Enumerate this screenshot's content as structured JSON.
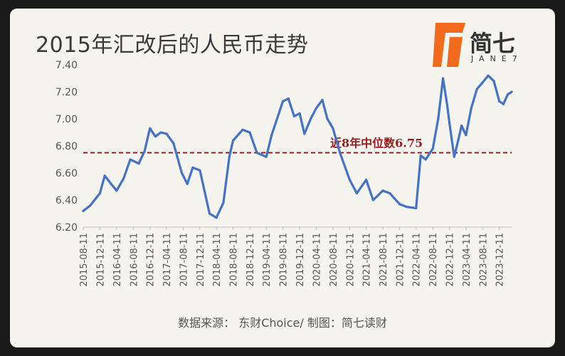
{
  "title": "2015年汇改后的人民币走势",
  "logo": {
    "name": "简七",
    "sub": "JANE7",
    "accent": "#f26a1b"
  },
  "source": "数据来源： 东财Choice/ 制图：简七读财",
  "chart_data": {
    "type": "line",
    "title": "2015年汇改后的人民币走势",
    "ylim": [
      6.2,
      7.4
    ],
    "yticks": [
      "6.20",
      "6.40",
      "6.60",
      "6.80",
      "7.00",
      "7.20",
      "7.40"
    ],
    "x_tick_labels": [
      "2015-08-11",
      "2015-12-11",
      "2016-04-11",
      "2016-08-11",
      "2016-12-11",
      "2017-04-11",
      "2017-08-11",
      "2017-12-11",
      "2018-04-11",
      "2018-08-11",
      "2018-12-11",
      "2019-04-11",
      "2019-08-11",
      "2019-12-11",
      "2020-04-11",
      "2020-08-11",
      "2020-12-11",
      "2021-04-11",
      "2021-08-11",
      "2021-12-11",
      "2022-04-11",
      "2022-08-11",
      "2022-12-11",
      "2023-04-11",
      "2023-08-11",
      "2023-12-11"
    ],
    "grid": false,
    "line_color": "#4472c4",
    "series": [
      {
        "values": [
          {
            "x": "2015-08-11",
            "y": 6.32
          },
          {
            "x": "2015-10-01",
            "y": 6.36
          },
          {
            "x": "2015-12-11",
            "y": 6.45
          },
          {
            "x": "2016-01-15",
            "y": 6.58
          },
          {
            "x": "2016-03-01",
            "y": 6.52
          },
          {
            "x": "2016-04-11",
            "y": 6.47
          },
          {
            "x": "2016-06-01",
            "y": 6.56
          },
          {
            "x": "2016-07-20",
            "y": 6.7
          },
          {
            "x": "2016-09-20",
            "y": 6.67
          },
          {
            "x": "2016-11-01",
            "y": 6.76
          },
          {
            "x": "2016-12-11",
            "y": 6.93
          },
          {
            "x": "2017-01-20",
            "y": 6.87
          },
          {
            "x": "2017-03-01",
            "y": 6.9
          },
          {
            "x": "2017-04-11",
            "y": 6.89
          },
          {
            "x": "2017-06-01",
            "y": 6.82
          },
          {
            "x": "2017-08-01",
            "y": 6.6
          },
          {
            "x": "2017-09-10",
            "y": 6.52
          },
          {
            "x": "2017-10-20",
            "y": 6.64
          },
          {
            "x": "2017-12-11",
            "y": 6.62
          },
          {
            "x": "2018-02-20",
            "y": 6.3
          },
          {
            "x": "2018-04-11",
            "y": 6.27
          },
          {
            "x": "2018-06-01",
            "y": 6.38
          },
          {
            "x": "2018-07-15",
            "y": 6.72
          },
          {
            "x": "2018-08-11",
            "y": 6.84
          },
          {
            "x": "2018-10-20",
            "y": 6.92
          },
          {
            "x": "2018-12-11",
            "y": 6.9
          },
          {
            "x": "2019-02-01",
            "y": 6.75
          },
          {
            "x": "2019-04-11",
            "y": 6.72
          },
          {
            "x": "2019-05-20",
            "y": 6.88
          },
          {
            "x": "2019-08-11",
            "y": 7.13
          },
          {
            "x": "2019-09-20",
            "y": 7.15
          },
          {
            "x": "2019-11-01",
            "y": 7.02
          },
          {
            "x": "2019-12-11",
            "y": 7.04
          },
          {
            "x": "2020-01-15",
            "y": 6.89
          },
          {
            "x": "2020-03-01",
            "y": 7.0
          },
          {
            "x": "2020-04-11",
            "y": 7.08
          },
          {
            "x": "2020-05-25",
            "y": 7.14
          },
          {
            "x": "2020-07-01",
            "y": 7.0
          },
          {
            "x": "2020-08-11",
            "y": 6.93
          },
          {
            "x": "2020-10-01",
            "y": 6.75
          },
          {
            "x": "2020-12-11",
            "y": 6.55
          },
          {
            "x": "2021-02-01",
            "y": 6.45
          },
          {
            "x": "2021-04-11",
            "y": 6.55
          },
          {
            "x": "2021-06-01",
            "y": 6.4
          },
          {
            "x": "2021-08-11",
            "y": 6.47
          },
          {
            "x": "2021-10-01",
            "y": 6.45
          },
          {
            "x": "2021-12-11",
            "y": 6.37
          },
          {
            "x": "2022-02-01",
            "y": 6.35
          },
          {
            "x": "2022-04-11",
            "y": 6.34
          },
          {
            "x": "2022-05-15",
            "y": 6.73
          },
          {
            "x": "2022-06-20",
            "y": 6.7
          },
          {
            "x": "2022-08-11",
            "y": 6.78
          },
          {
            "x": "2022-09-20",
            "y": 7.0
          },
          {
            "x": "2022-10-25",
            "y": 7.3
          },
          {
            "x": "2022-11-25",
            "y": 7.1
          },
          {
            "x": "2022-12-11",
            "y": 6.97
          },
          {
            "x": "2023-01-15",
            "y": 6.72
          },
          {
            "x": "2023-02-15",
            "y": 6.85
          },
          {
            "x": "2023-03-10",
            "y": 6.95
          },
          {
            "x": "2023-04-11",
            "y": 6.88
          },
          {
            "x": "2023-05-20",
            "y": 7.08
          },
          {
            "x": "2023-06-30",
            "y": 7.22
          },
          {
            "x": "2023-08-11",
            "y": 7.27
          },
          {
            "x": "2023-09-20",
            "y": 7.32
          },
          {
            "x": "2023-11-01",
            "y": 7.28
          },
          {
            "x": "2023-12-11",
            "y": 7.13
          },
          {
            "x": "2024-01-10",
            "y": 7.11
          },
          {
            "x": "2024-02-10",
            "y": 7.18
          },
          {
            "x": "2024-03-10",
            "y": 7.2
          }
        ]
      }
    ],
    "reference_line": {
      "y": 6.75,
      "label": "近8年中位数6.75",
      "color": "#9b1b1b",
      "style": "dashed"
    }
  }
}
